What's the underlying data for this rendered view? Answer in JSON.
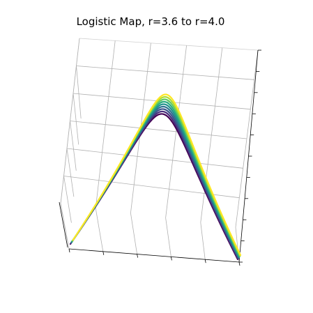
{
  "chart_data": {
    "type": "line",
    "title": "Logistic Map, r=3.6 to r=4.0",
    "function": "r*x*(1-x)",
    "xlabel": "",
    "ylabel": "",
    "zlabel": "",
    "xlim": [
      0,
      1
    ],
    "r_range": [
      3.6,
      4.0
    ],
    "grid": true,
    "colormap": "viridis",
    "series": [
      {
        "r": 3.6,
        "x": [
          0,
          0.1,
          0.2,
          0.3,
          0.4,
          0.5,
          0.6,
          0.7,
          0.8,
          0.9,
          1
        ],
        "y": [
          0,
          0.324,
          0.576,
          0.756,
          0.864,
          0.9,
          0.864,
          0.756,
          0.576,
          0.324,
          0
        ]
      },
      {
        "r": 3.65,
        "x": [
          0,
          0.1,
          0.2,
          0.3,
          0.4,
          0.5,
          0.6,
          0.7,
          0.8,
          0.9,
          1
        ],
        "y": [
          0,
          0.329,
          0.584,
          0.767,
          0.876,
          0.913,
          0.876,
          0.767,
          0.584,
          0.329,
          0
        ]
      },
      {
        "r": 3.7,
        "x": [
          0,
          0.1,
          0.2,
          0.3,
          0.4,
          0.5,
          0.6,
          0.7,
          0.8,
          0.9,
          1
        ],
        "y": [
          0,
          0.333,
          0.592,
          0.777,
          0.888,
          0.925,
          0.888,
          0.777,
          0.592,
          0.333,
          0
        ]
      },
      {
        "r": 3.75,
        "x": [
          0,
          0.1,
          0.2,
          0.3,
          0.4,
          0.5,
          0.6,
          0.7,
          0.8,
          0.9,
          1
        ],
        "y": [
          0,
          0.338,
          0.6,
          0.788,
          0.9,
          0.938,
          0.9,
          0.788,
          0.6,
          0.338,
          0
        ]
      },
      {
        "r": 3.8,
        "x": [
          0,
          0.1,
          0.2,
          0.3,
          0.4,
          0.5,
          0.6,
          0.7,
          0.8,
          0.9,
          1
        ],
        "y": [
          0,
          0.342,
          0.608,
          0.798,
          0.912,
          0.95,
          0.912,
          0.798,
          0.608,
          0.342,
          0
        ]
      },
      {
        "r": 3.85,
        "x": [
          0,
          0.1,
          0.2,
          0.3,
          0.4,
          0.5,
          0.6,
          0.7,
          0.8,
          0.9,
          1
        ],
        "y": [
          0,
          0.347,
          0.616,
          0.809,
          0.924,
          0.963,
          0.924,
          0.809,
          0.616,
          0.347,
          0
        ]
      },
      {
        "r": 3.9,
        "x": [
          0,
          0.1,
          0.2,
          0.3,
          0.4,
          0.5,
          0.6,
          0.7,
          0.8,
          0.9,
          1
        ],
        "y": [
          0,
          0.351,
          0.624,
          0.819,
          0.936,
          0.975,
          0.936,
          0.819,
          0.624,
          0.351,
          0
        ]
      },
      {
        "r": 3.95,
        "x": [
          0,
          0.1,
          0.2,
          0.3,
          0.4,
          0.5,
          0.6,
          0.7,
          0.8,
          0.9,
          1
        ],
        "y": [
          0,
          0.356,
          0.632,
          0.83,
          0.948,
          0.988,
          0.948,
          0.83,
          0.632,
          0.356,
          0
        ]
      },
      {
        "r": 4.0,
        "x": [
          0,
          0.1,
          0.2,
          0.3,
          0.4,
          0.5,
          0.6,
          0.7,
          0.8,
          0.9,
          1
        ],
        "y": [
          0,
          0.36,
          0.64,
          0.84,
          0.96,
          1.0,
          0.96,
          0.84,
          0.64,
          0.36,
          0
        ]
      }
    ]
  },
  "colors": {
    "title": "#000000",
    "grid": "#b0b0b0",
    "pane_edge": "#d0d0d0",
    "spine": "#000000",
    "series": [
      "#440154",
      "#472d7b",
      "#3b528b",
      "#2c728e",
      "#21918c",
      "#28ae80",
      "#5ec962",
      "#addc30",
      "#fde725"
    ]
  }
}
